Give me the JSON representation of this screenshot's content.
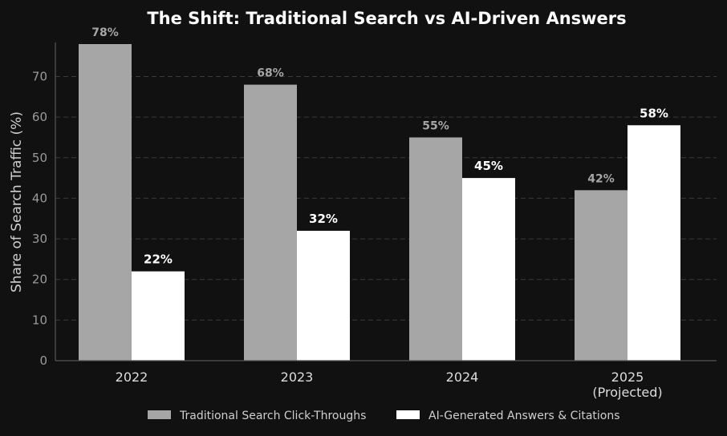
{
  "chart_data": {
    "type": "bar",
    "title": "The Shift: Traditional Search vs AI-Driven Answers",
    "xlabel": "",
    "ylabel": "Share of Search Traffic (%)",
    "ylim": [
      0,
      78
    ],
    "yticks": [
      0,
      10,
      20,
      30,
      40,
      50,
      60,
      70
    ],
    "categories": [
      [
        "2022"
      ],
      [
        "2023"
      ],
      [
        "2024"
      ],
      [
        "2025",
        "(Projected)"
      ]
    ],
    "series": [
      {
        "name": "Traditional Search Click-Throughs",
        "values": [
          78,
          68,
          55,
          42
        ],
        "labels": [
          "78%",
          "68%",
          "55%",
          "42%"
        ],
        "color": "#a6a6a6",
        "label_color": "#a6a6a6"
      },
      {
        "name": "AI-Generated Answers & Citations",
        "values": [
          22,
          32,
          45,
          58
        ],
        "labels": [
          "22%",
          "32%",
          "45%",
          "58%"
        ],
        "color": "#ffffff",
        "label_color": "#ffffff"
      }
    ],
    "grid": true,
    "grid_style": "dashed",
    "legend_position": "bottom-center",
    "background": "#111111"
  }
}
